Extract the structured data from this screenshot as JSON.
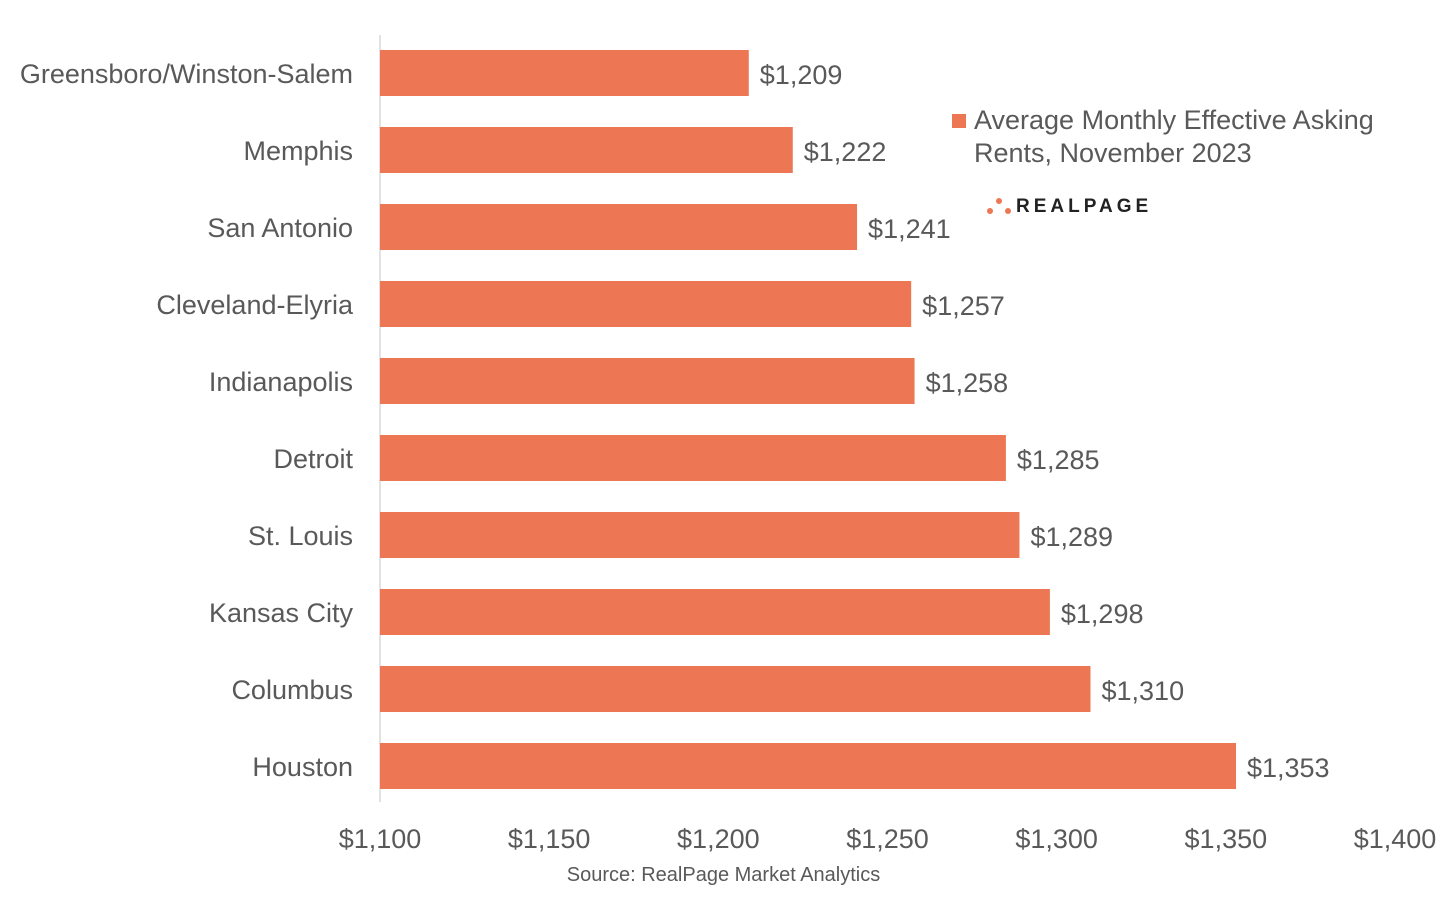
{
  "chart_data": {
    "type": "bar",
    "orientation": "horizontal",
    "categories": [
      "Greensboro/Winston-Salem",
      "Memphis",
      "San Antonio",
      "Cleveland-Elyria",
      "Indianapolis",
      "Detroit",
      "St. Louis",
      "Kansas City",
      "Columbus",
      "Houston"
    ],
    "values": [
      1209,
      1222,
      1241,
      1257,
      1258,
      1285,
      1289,
      1298,
      1310,
      1353
    ],
    "data_labels": [
      "$1,209",
      "$1,222",
      "$1,241",
      "$1,257",
      "$1,258",
      "$1,285",
      "$1,289",
      "$1,298",
      "$1,310",
      "$1,353"
    ],
    "xlim": [
      1100,
      1400
    ],
    "xticks": [
      1100,
      1150,
      1200,
      1250,
      1300,
      1350,
      1400
    ],
    "xtick_labels": [
      "$1,100",
      "$1,150",
      "$1,200",
      "$1,250",
      "$1,300",
      "$1,350",
      "$1,400"
    ],
    "legend": {
      "label": "Average Monthly Effective Asking Rents, November 2023",
      "placement": "top-right"
    },
    "grid": false,
    "source": "Source: RealPage Market Analytics",
    "logo_text": "REALPAGE",
    "colors": {
      "bar": "#ED7755",
      "text": "#595959",
      "axis": "#D9D9D9"
    }
  }
}
